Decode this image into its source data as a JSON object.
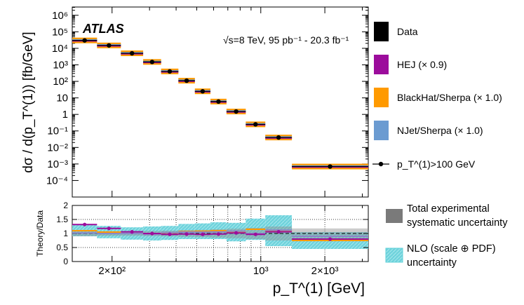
{
  "chart_data": {
    "type": "scatter",
    "experiment": "ATLAS",
    "annotation": "√s=8 TeV, 95 pb⁻¹ - 20.3 fb⁻¹",
    "xlabel": "p_T^(1) [GeV]",
    "ylabel": "dσ / d(p_T^(1)) [fb/GeV]",
    "ratio_ylabel": "Theory/Data",
    "x_scale": "log",
    "y_scale": "log",
    "xlim": [
      130,
      3200
    ],
    "ylim_exponents": [
      -5,
      6.5
    ],
    "ratio_ylim": [
      0,
      2
    ],
    "y_tick_labels": [
      "10⁶",
      "10⁵",
      "10⁴",
      "10³",
      "10²",
      "10",
      "1",
      "10⁻¹",
      "10⁻²",
      "10⁻³",
      "10⁻⁴"
    ],
    "y_tick_exponents": [
      6,
      5,
      4,
      3,
      2,
      1,
      0,
      -1,
      -2,
      -3,
      -4
    ],
    "x_tick_labels": [
      "2×10²",
      "10³",
      "2×10³"
    ],
    "x_tick_values": [
      200,
      1000,
      2000
    ],
    "ratio_tick_labels": [
      "2",
      "1.5",
      "1",
      "0.5",
      "0"
    ],
    "ratio_tick_values": [
      2,
      1.5,
      1,
      0.5,
      0
    ],
    "bins": [
      {
        "lo": 130,
        "hi": 170,
        "data": 30000,
        "ratio_hej": 1.32,
        "ratio_nlo": 1.1,
        "ratio_njet": 1.02
      },
      {
        "lo": 170,
        "hi": 220,
        "data": 15000,
        "ratio_hej": 1.18,
        "ratio_nlo": 1.05,
        "ratio_njet": 1.0
      },
      {
        "lo": 220,
        "hi": 280,
        "data": 5000,
        "ratio_hej": 1.06,
        "ratio_nlo": 1.0,
        "ratio_njet": 1.0
      },
      {
        "lo": 280,
        "hi": 340,
        "data": 1500,
        "ratio_hej": 1.0,
        "ratio_nlo": 1.0,
        "ratio_njet": 0.97
      },
      {
        "lo": 340,
        "hi": 410,
        "data": 400,
        "ratio_hej": 0.97,
        "ratio_nlo": 1.02,
        "ratio_njet": 1.03
      },
      {
        "lo": 410,
        "hi": 490,
        "data": 110,
        "ratio_hej": 0.98,
        "ratio_nlo": 1.07,
        "ratio_njet": 1.05
      },
      {
        "lo": 490,
        "hi": 580,
        "data": 25,
        "ratio_hej": 0.97,
        "ratio_nlo": 1.08,
        "ratio_njet": 1.05
      },
      {
        "lo": 580,
        "hi": 690,
        "data": 6,
        "ratio_hej": 0.98,
        "ratio_nlo": 1.1,
        "ratio_njet": 1.06
      },
      {
        "lo": 690,
        "hi": 850,
        "data": 1.5,
        "ratio_hej": 1.02,
        "ratio_nlo": 1.05,
        "ratio_njet": 1.08
      },
      {
        "lo": 850,
        "hi": 1050,
        "data": 0.25,
        "ratio_hej": 0.97,
        "ratio_nlo": 1.15,
        "ratio_njet": 1.0
      },
      {
        "lo": 1050,
        "hi": 1400,
        "data": 0.04,
        "ratio_hej": 1.06,
        "ratio_nlo": 1.1,
        "ratio_njet": 1.12
      },
      {
        "lo": 1400,
        "hi": 3200,
        "data": 0.0007,
        "ratio_hej": 0.8,
        "ratio_nlo": 0.75,
        "ratio_njet": 0.9
      }
    ],
    "legend_top": [
      {
        "name": "Data",
        "color": "#000000"
      },
      {
        "name": "HEJ (× 0.9)",
        "color": "#9c0c9c"
      },
      {
        "name": "BlackHat/Sherpa (× 1.0)",
        "color": "#ff9a00"
      },
      {
        "name": "NJet/Sherpa (× 1.0)",
        "color": "#6b9bd1"
      },
      {
        "name": "p_T^(1)>100 GeV",
        "color": "#000000"
      }
    ],
    "legend_bottom": [
      {
        "line1": "Total experimental",
        "line2": "systematic uncertainty",
        "color": "#7a7a7a"
      },
      {
        "line1": "NLO (scale ⊕ PDF)",
        "line2": "uncertainty",
        "color": "#5fd0d8"
      }
    ]
  }
}
